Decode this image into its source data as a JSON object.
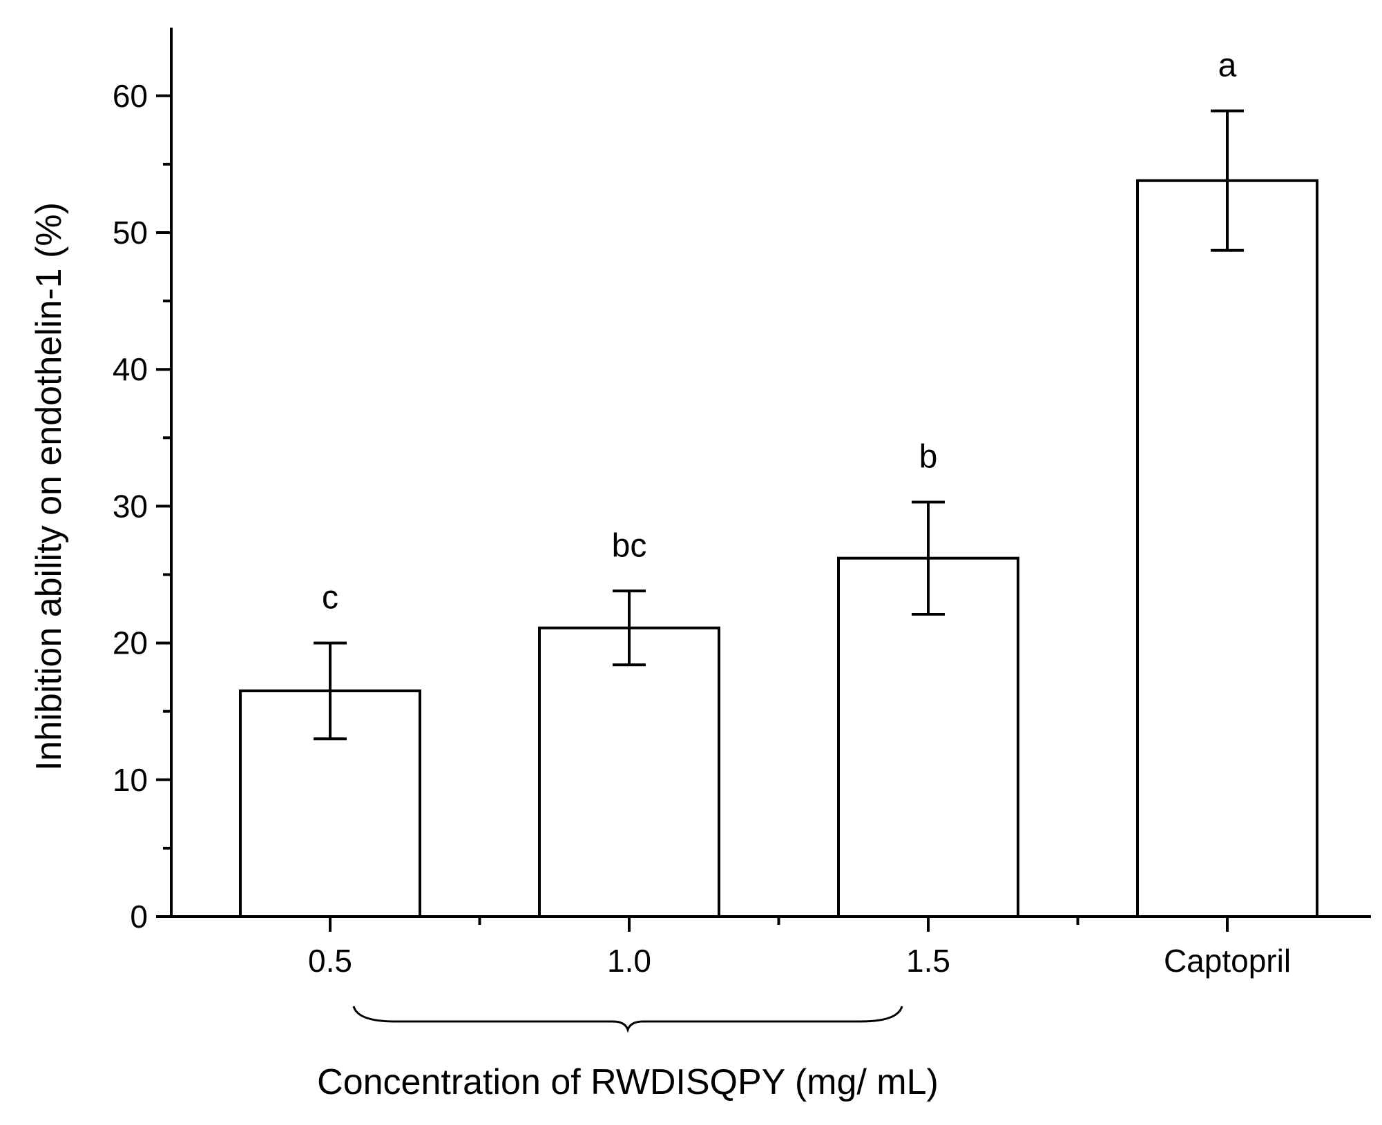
{
  "chart_data": {
    "type": "bar",
    "title": "",
    "categories": [
      "0.5",
      "1.0",
      "1.5",
      "Captopril"
    ],
    "values": [
      16.5,
      21.1,
      26.2,
      53.8
    ],
    "errors": [
      3.5,
      2.7,
      4.1,
      5.1
    ],
    "significance_labels": [
      "c",
      "bc",
      "b",
      "a"
    ],
    "ylabel": "Inhibition ability on endothelin-1 (%)",
    "xlabel": "Concentration of RWDISQPY (mg/ mL)",
    "xlabel_group_categories": [
      "0.5",
      "1.0",
      "1.5"
    ],
    "ylim": [
      0,
      65
    ],
    "yticks": [
      "0",
      "10",
      "20",
      "30",
      "40",
      "50",
      "60"
    ],
    "grid": false,
    "legend": "none"
  }
}
